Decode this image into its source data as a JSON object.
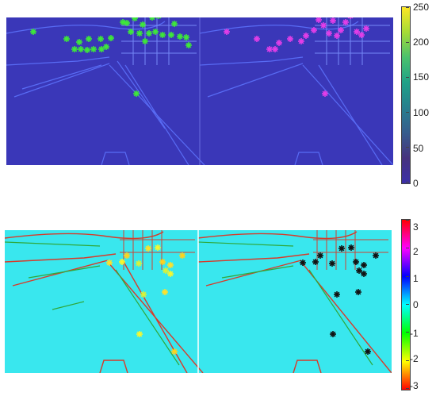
{
  "top_colorbar": {
    "ticks": [
      "250",
      "200",
      "150",
      "100",
      "50",
      "0"
    ],
    "colors": [
      "#fde725",
      "#a5db36",
      "#4ac16d",
      "#1fa187",
      "#277f8e",
      "#365c8d",
      "#46327e",
      "#3b2fa8"
    ]
  },
  "bottom_colorbar": {
    "ticks": [
      "3",
      "2",
      "1",
      "0",
      "-1",
      "-2",
      "-3"
    ],
    "colors": [
      "#ff0000",
      "#ff00ff",
      "#0000ff",
      "#00ffff",
      "#00ff00",
      "#ffff00",
      "#ff0000"
    ]
  },
  "top_left_keypoints": [
    [
      42,
      40
    ],
    [
      84,
      49
    ],
    [
      100,
      53
    ],
    [
      112,
      49
    ],
    [
      127,
      49
    ],
    [
      134,
      59
    ],
    [
      140,
      48
    ],
    [
      155,
      28
    ],
    [
      160,
      29
    ],
    [
      165,
      40
    ],
    [
      170,
      23
    ],
    [
      176,
      42
    ],
    [
      180,
      31
    ],
    [
      183,
      52
    ],
    [
      188,
      42
    ],
    [
      192,
      22
    ],
    [
      196,
      40
    ],
    [
      200,
      20
    ],
    [
      205,
      44
    ],
    [
      216,
      44
    ],
    [
      220,
      30
    ],
    [
      227,
      46
    ],
    [
      235,
      47
    ],
    [
      238,
      57
    ],
    [
      94,
      62
    ],
    [
      102,
      62
    ],
    [
      110,
      63
    ],
    [
      118,
      62
    ],
    [
      128,
      62
    ],
    [
      172,
      118
    ]
  ],
  "top_right_keypoints": [
    [
      286,
      40
    ],
    [
      324,
      49
    ],
    [
      340,
      62
    ],
    [
      347,
      62
    ],
    [
      352,
      54
    ],
    [
      366,
      49
    ],
    [
      380,
      52
    ],
    [
      386,
      45
    ],
    [
      396,
      38
    ],
    [
      402,
      25
    ],
    [
      408,
      32
    ],
    [
      415,
      42
    ],
    [
      420,
      26
    ],
    [
      425,
      45
    ],
    [
      430,
      38
    ],
    [
      436,
      28
    ],
    [
      442,
      20
    ],
    [
      450,
      40
    ],
    [
      456,
      44
    ],
    [
      462,
      36
    ],
    [
      410,
      118
    ]
  ],
  "bottom_left_keypoints": [
    [
      138,
      331
    ],
    [
      154,
      330
    ],
    [
      160,
      322
    ],
    [
      175,
      332
    ],
    [
      187,
      313
    ],
    [
      199,
      312
    ],
    [
      205,
      330
    ],
    [
      209,
      341
    ],
    [
      215,
      334
    ],
    [
      215,
      345
    ],
    [
      230,
      322
    ],
    [
      181,
      371
    ],
    [
      208,
      368
    ],
    [
      176,
      421
    ],
    [
      220,
      443
    ]
  ],
  "bottom_right_keypoints": [
    [
      382,
      331
    ],
    [
      398,
      330
    ],
    [
      404,
      322
    ],
    [
      419,
      332
    ],
    [
      431,
      313
    ],
    [
      443,
      312
    ],
    [
      449,
      330
    ],
    [
      453,
      341
    ],
    [
      459,
      334
    ],
    [
      459,
      345
    ],
    [
      474,
      322
    ],
    [
      425,
      371
    ],
    [
      452,
      368
    ],
    [
      420,
      421
    ],
    [
      464,
      443
    ]
  ]
}
